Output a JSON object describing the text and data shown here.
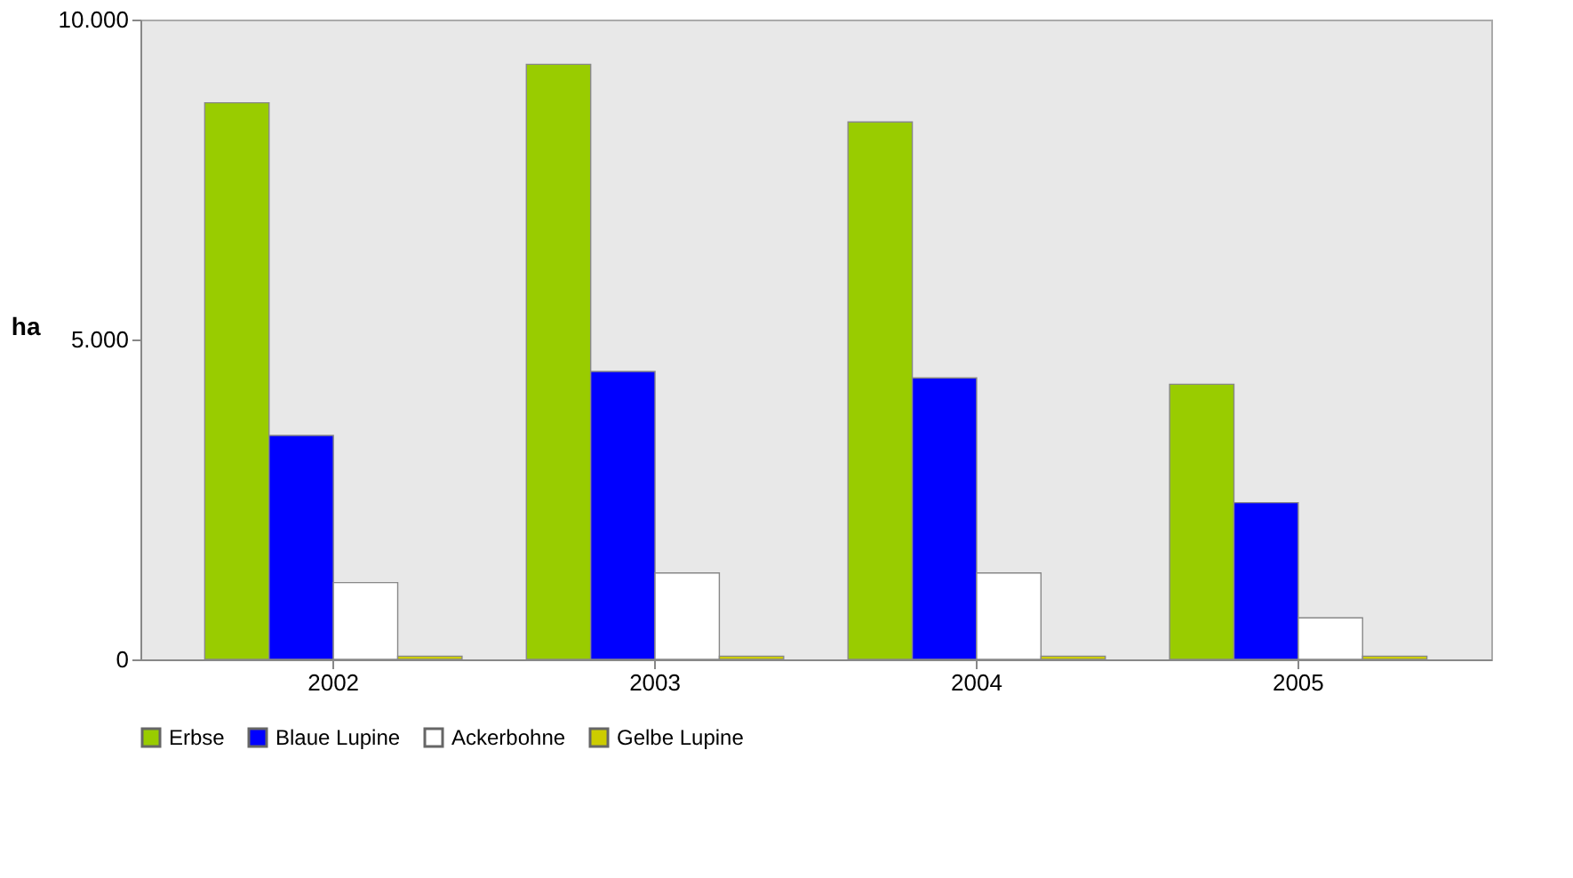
{
  "chart_data": {
    "type": "bar",
    "ylabel": "ha",
    "categories": [
      "2002",
      "2003",
      "2004",
      "2005"
    ],
    "series": [
      {
        "name": "Erbse",
        "color": "#99cc00",
        "values": [
          8700,
          9300,
          8400,
          4300
        ]
      },
      {
        "name": "Blaue Lupine",
        "color": "#0000ff",
        "values": [
          3500,
          4500,
          4400,
          2450
        ]
      },
      {
        "name": "Ackerbohne",
        "color": "#ffffff",
        "values": [
          1200,
          1350,
          1350,
          650
        ]
      },
      {
        "name": "Gelbe Lupine",
        "color": "#cccc00",
        "values": [
          50,
          50,
          50,
          50
        ]
      }
    ],
    "ylim": [
      0,
      10000
    ],
    "yticks": [
      {
        "value": 0,
        "label": "0"
      },
      {
        "value": 5000,
        "label": "5.000"
      },
      {
        "value": 10000,
        "label": "10.000"
      }
    ],
    "grid": false,
    "legend": "bottom"
  }
}
